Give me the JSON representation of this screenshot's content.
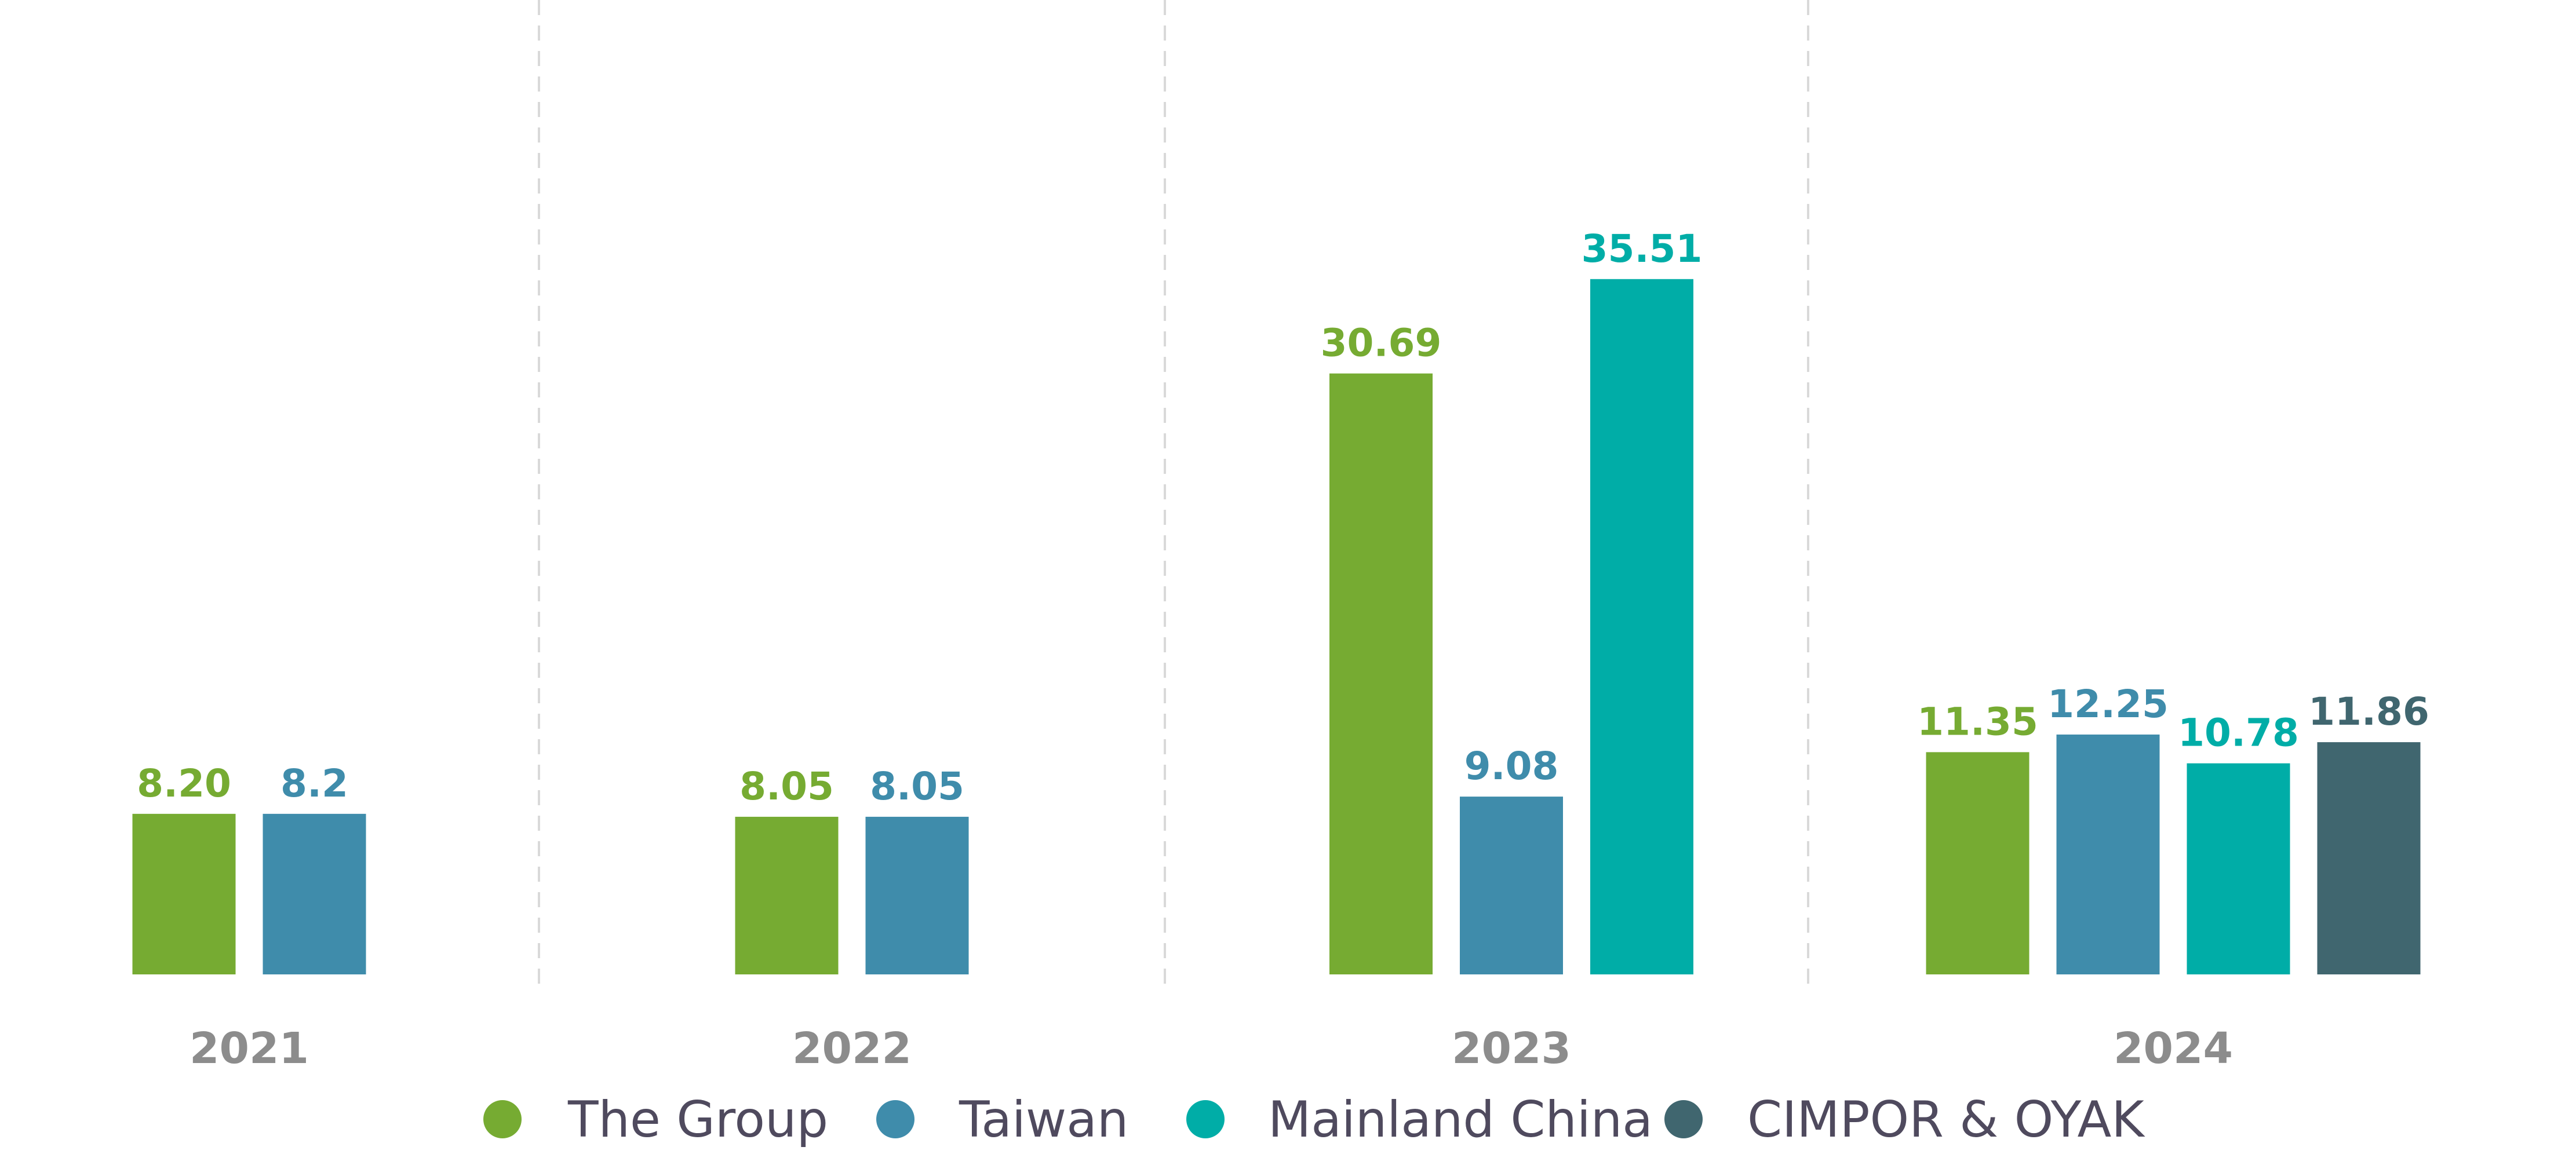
{
  "chart_data": {
    "type": "bar",
    "categories": [
      "2021",
      "2022",
      "2023",
      "2024"
    ],
    "series": [
      {
        "name": "The Group",
        "color": "#76ab32",
        "values": [
          8.2,
          8.05,
          30.69,
          11.35
        ],
        "labels": [
          "8.20",
          "8.05",
          "30.69",
          "11.35"
        ]
      },
      {
        "name": "Taiwan",
        "color": "#3f8cab",
        "values": [
          8.2,
          8.05,
          9.08,
          12.25
        ],
        "labels": [
          "8.2",
          "8.05",
          "9.08",
          "12.25"
        ]
      },
      {
        "name": "Mainland China",
        "color": "#00ada7",
        "values": [
          null,
          null,
          35.51,
          10.78
        ],
        "labels": [
          null,
          null,
          "35.51",
          "10.78"
        ]
      },
      {
        "name": "CIMPOR & OYAK",
        "color": "#40666f",
        "values": [
          null,
          null,
          null,
          11.86
        ],
        "labels": [
          null,
          null,
          null,
          "11.86"
        ]
      }
    ],
    "grid": "dashed vertical separators between year groups",
    "legend_position": "bottom",
    "colors": {
      "separator": "#d9d9d9",
      "year_label": "#8c8c8c",
      "legend_text": "#4f4a5e"
    }
  }
}
